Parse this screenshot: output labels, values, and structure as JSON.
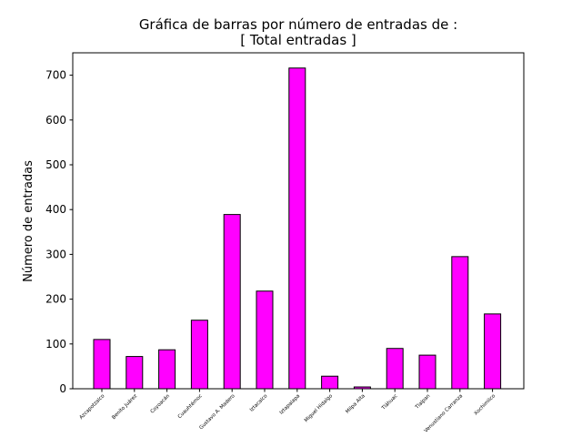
{
  "chart_data": {
    "type": "bar",
    "title_line1": "Gráfica de barras por número de entradas de :",
    "title_line2": "[ Total entradas ]",
    "xlabel": "",
    "ylabel": "Número de entradas",
    "ylim": [
      0,
      750
    ],
    "yticks": [
      0,
      100,
      200,
      300,
      400,
      500,
      600,
      700
    ],
    "categories": [
      "Azcapotzalco",
      "Benito Juárez",
      "Coyoacán",
      "Cuauhtémoc",
      "Gustavo A. Madero",
      "Iztacalco",
      "Iztapalapa",
      "Miguel Hidalgo",
      "Milpa Alta",
      "Tláhuac",
      "Tlalpan",
      "Venustiano Carranza",
      "Xochimilco"
    ],
    "values": [
      110,
      72,
      87,
      153,
      389,
      218,
      716,
      28,
      4,
      90,
      75,
      295,
      167
    ],
    "bar_color": "#ff00ff",
    "edge_color": "#000000",
    "grid": false
  }
}
